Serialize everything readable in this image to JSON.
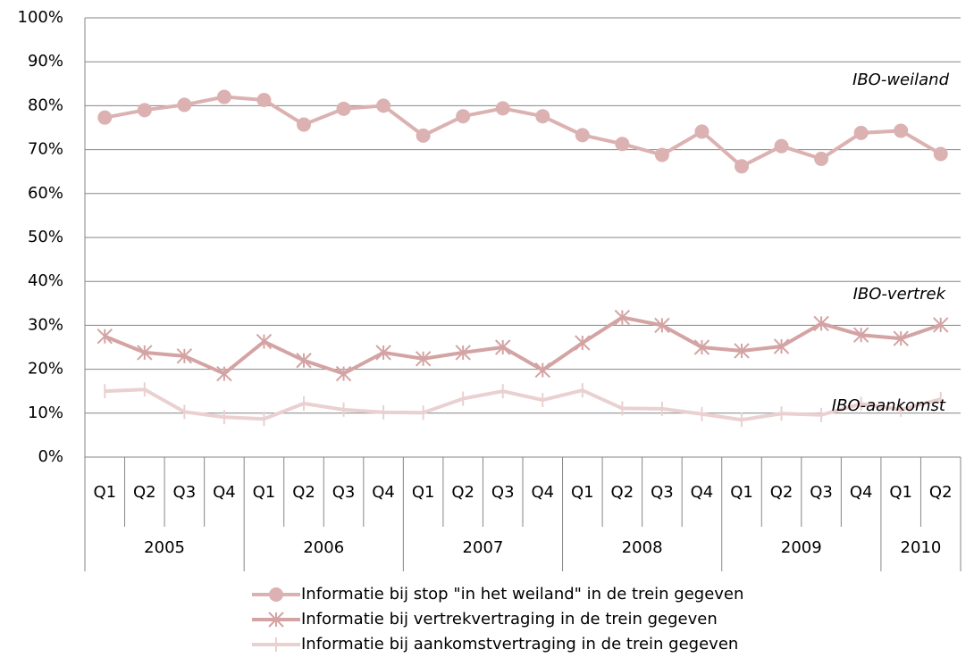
{
  "chart_data": {
    "type": "line",
    "categories": [
      "Q1",
      "Q2",
      "Q3",
      "Q4",
      "Q1",
      "Q2",
      "Q3",
      "Q4",
      "Q1",
      "Q2",
      "Q3",
      "Q4",
      "Q1",
      "Q2",
      "Q3",
      "Q4",
      "Q1",
      "Q2",
      "Q3",
      "Q4",
      "Q1",
      "Q2"
    ],
    "groups": [
      {
        "label": "2005",
        "size": 4
      },
      {
        "label": "2006",
        "size": 4
      },
      {
        "label": "2007",
        "size": 4
      },
      {
        "label": "2008",
        "size": 4
      },
      {
        "label": "2009",
        "size": 4
      },
      {
        "label": "2010",
        "size": 2
      }
    ],
    "ylim": [
      0,
      100
    ],
    "yticks": [
      {
        "value": 0,
        "label": "0%"
      },
      {
        "value": 10,
        "label": "10%"
      },
      {
        "value": 20,
        "label": "20%"
      },
      {
        "value": 30,
        "label": "30%"
      },
      {
        "value": 40,
        "label": "40%"
      },
      {
        "value": 50,
        "label": "50%"
      },
      {
        "value": 60,
        "label": "60%"
      },
      {
        "value": 70,
        "label": "70%"
      },
      {
        "value": 80,
        "label": "80%"
      },
      {
        "value": 90,
        "label": "90%"
      },
      {
        "value": 100,
        "label": "100%"
      }
    ],
    "grid": true,
    "legend": "bottom",
    "annotations": [
      "IBO-weiland",
      "IBO-vertrek",
      "IBO-aankomst"
    ],
    "series": [
      {
        "name": "Informatie bij stop \"in het weiland\" in de trein gegeven",
        "color": "#dcb1b1",
        "marker": "circle",
        "values": [
          77.3,
          79,
          80.2,
          82,
          81.3,
          75.7,
          79.3,
          80,
          73.2,
          77.6,
          79.4,
          77.6,
          73.3,
          71.3,
          68.8,
          74.1,
          66.2,
          70.8,
          67.9,
          73.8,
          74.3,
          69
        ]
      },
      {
        "name": "Informatie bij vertrekvertraging in de trein gegeven",
        "color": "#d4a3a3",
        "marker": "star",
        "values": [
          27.5,
          23.8,
          23,
          19,
          26.3,
          22,
          19,
          23.8,
          22.4,
          23.8,
          25,
          19.8,
          26,
          31.8,
          30,
          25,
          24.2,
          25.2,
          30.4,
          27.8,
          27,
          30.1
        ]
      },
      {
        "name": "Informatie bij aankomstvertraging in de trein gegeven",
        "color": "#ead0d0",
        "marker": "plus",
        "values": [
          15,
          15.4,
          10.3,
          9.1,
          8.7,
          12.2,
          10.8,
          10.2,
          10.1,
          13.3,
          15,
          13,
          15.2,
          11.1,
          11,
          9.8,
          8.5,
          9.9,
          9.6,
          12.1,
          10.8,
          13.2
        ]
      }
    ]
  }
}
